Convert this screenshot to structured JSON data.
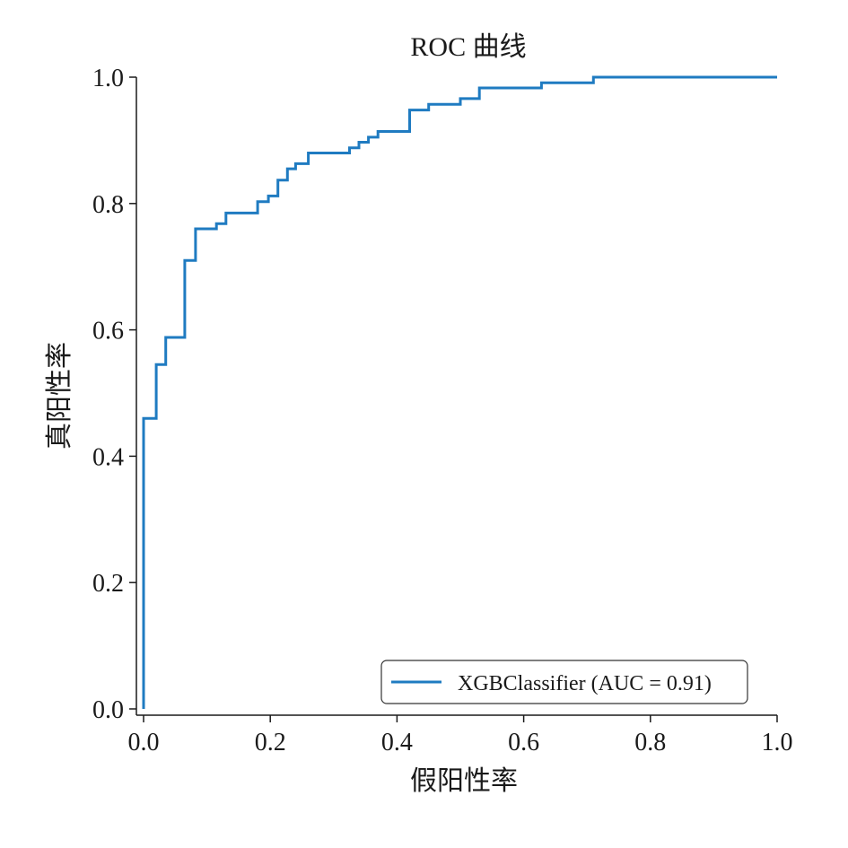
{
  "chart_data": {
    "type": "line",
    "title": "ROC 曲线",
    "xlabel": "假阳性率",
    "ylabel": "真阳性率",
    "xlim": [
      0.0,
      1.0
    ],
    "ylim": [
      0.0,
      1.0
    ],
    "xticks": [
      "0.0",
      "0.2",
      "0.4",
      "0.6",
      "0.8",
      "1.0"
    ],
    "yticks": [
      "0.0",
      "0.2",
      "0.4",
      "0.6",
      "0.8",
      "1.0"
    ],
    "grid": false,
    "legend_position": "lower-right",
    "series": [
      {
        "name": "XGBClassifier (AUC = 0.91)",
        "color": "#1f7bc1",
        "x": [
          0.0,
          0.0,
          0.0,
          0.02,
          0.02,
          0.035,
          0.035,
          0.065,
          0.065,
          0.082,
          0.082,
          0.115,
          0.115,
          0.13,
          0.13,
          0.18,
          0.18,
          0.197,
          0.197,
          0.212,
          0.212,
          0.227,
          0.227,
          0.24,
          0.24,
          0.26,
          0.26,
          0.325,
          0.325,
          0.34,
          0.34,
          0.355,
          0.355,
          0.37,
          0.37,
          0.42,
          0.42,
          0.45,
          0.45,
          0.5,
          0.5,
          0.53,
          0.53,
          0.628,
          0.628,
          0.71,
          0.71,
          1.0
        ],
        "y": [
          0.0,
          0.46,
          0.46,
          0.46,
          0.545,
          0.545,
          0.588,
          0.588,
          0.71,
          0.71,
          0.76,
          0.76,
          0.768,
          0.768,
          0.785,
          0.785,
          0.803,
          0.803,
          0.812,
          0.812,
          0.837,
          0.837,
          0.855,
          0.855,
          0.863,
          0.863,
          0.88,
          0.88,
          0.888,
          0.888,
          0.897,
          0.897,
          0.905,
          0.905,
          0.914,
          0.914,
          0.948,
          0.948,
          0.957,
          0.957,
          0.966,
          0.966,
          0.983,
          0.983,
          0.991,
          0.991,
          1.0,
          1.0
        ]
      }
    ]
  }
}
